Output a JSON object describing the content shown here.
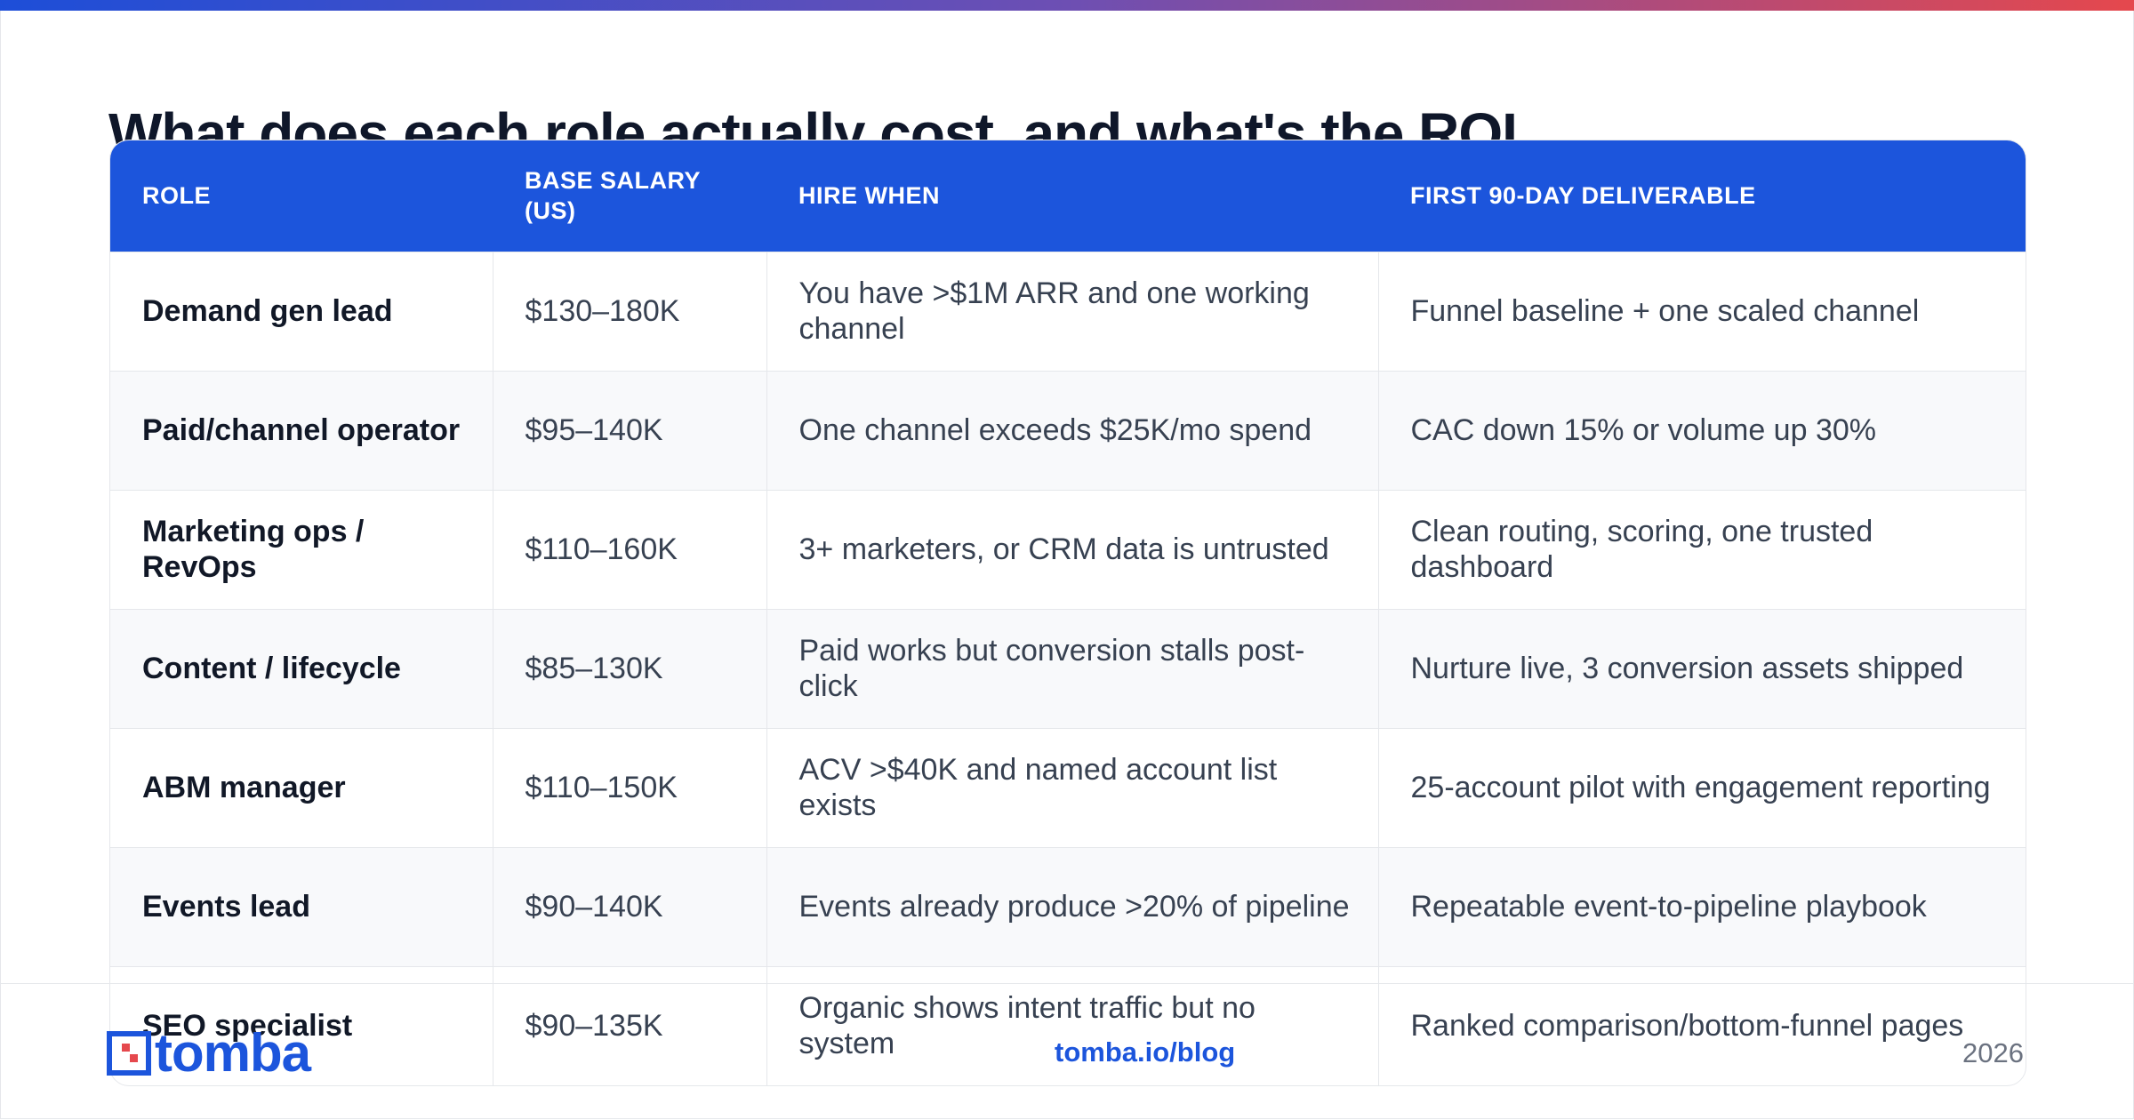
{
  "page": {
    "title": "What does each role actually cost, and what's the ROI",
    "accent_color": "#1c55dc",
    "gradient_colors": [
      "#1d4ed8",
      "#6d4fb3",
      "#e5484d"
    ]
  },
  "table": {
    "headers": [
      "ROLE",
      "BASE SALARY (US)",
      "HIRE WHEN",
      "FIRST 90-DAY DELIVERABLE"
    ],
    "rows": [
      {
        "role": "Demand gen lead",
        "salary": "$130–180K",
        "hire_when": "You have >$1M ARR and one working channel",
        "deliverable": "Funnel baseline + one scaled channel"
      },
      {
        "role": "Paid/channel operator",
        "salary": "$95–140K",
        "hire_when": "One channel exceeds $25K/mo spend",
        "deliverable": "CAC down 15% or volume up 30%"
      },
      {
        "role": "Marketing ops / RevOps",
        "salary": "$110–160K",
        "hire_when": "3+ marketers, or CRM data is untrusted",
        "deliverable": "Clean routing, scoring, one trusted dashboard"
      },
      {
        "role": "Content / lifecycle",
        "salary": "$85–130K",
        "hire_when": "Paid works but conversion stalls post-click",
        "deliverable": "Nurture live, 3 conversion assets shipped"
      },
      {
        "role": "ABM manager",
        "salary": "$110–150K",
        "hire_when": "ACV >$40K and named account list exists",
        "deliverable": "25-account pilot with engagement reporting"
      },
      {
        "role": "Events lead",
        "salary": "$90–140K",
        "hire_when": "Events already produce >20% of pipeline",
        "deliverable": "Repeatable event-to-pipeline playbook"
      },
      {
        "role": "SEO specialist",
        "salary": "$90–135K",
        "hire_when": "Organic shows intent traffic but no system",
        "deliverable": "Ranked comparison/bottom-funnel pages"
      }
    ]
  },
  "footer": {
    "logo_text": "tomba",
    "logo_icon": "tomba-logo-icon",
    "link": "tomba.io/blog",
    "year": "2026"
  }
}
